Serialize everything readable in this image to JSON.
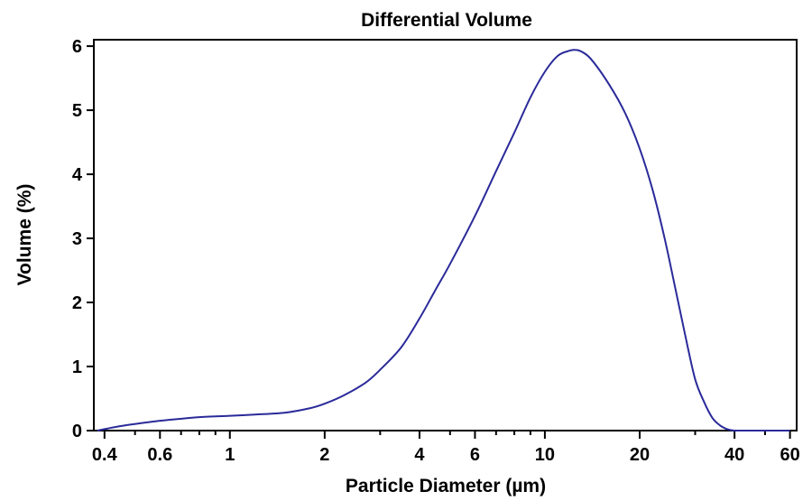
{
  "chart_data": {
    "type": "line",
    "title": "Differential Volume",
    "xlabel": "Particle Diameter (µm)",
    "ylabel": "Volume (%)",
    "x_scale": "log",
    "xlim": [
      0.37,
      63
    ],
    "ylim": [
      0,
      6.1
    ],
    "x_ticks": [
      0.4,
      0.6,
      1,
      2,
      4,
      6,
      10,
      20,
      40,
      60
    ],
    "x_tick_labels": [
      "0.4",
      "0.6",
      "1",
      "2",
      "4",
      "6",
      "10",
      "20",
      "40",
      "60"
    ],
    "y_ticks": [
      0,
      1,
      2,
      3,
      4,
      5,
      6
    ],
    "y_tick_labels": [
      "0",
      "1",
      "2",
      "3",
      "4",
      "5",
      "6"
    ],
    "grid": false,
    "legend": "none",
    "line_color": "#2a2a9a",
    "series": [
      {
        "x": [
          0.38,
          0.45,
          0.55,
          0.65,
          0.8,
          1.0,
          1.2,
          1.5,
          1.8,
          2.0,
          2.3,
          2.7,
          3.0,
          3.5,
          4.0,
          4.5,
          5.0,
          6.0,
          7.0,
          8.0,
          9.0,
          10.0,
          11.0,
          12.0,
          12.5,
          13.0,
          14.0,
          16.0,
          18.0,
          20.0,
          22.0,
          24.0,
          26.0,
          28.0,
          30.0,
          32.0,
          34.0,
          36.0,
          38.0,
          40.0,
          45.0,
          50.0,
          60.0
        ],
        "values": [
          0.0,
          0.07,
          0.13,
          0.17,
          0.21,
          0.23,
          0.25,
          0.28,
          0.35,
          0.42,
          0.55,
          0.75,
          0.95,
          1.3,
          1.75,
          2.2,
          2.6,
          3.35,
          4.05,
          4.65,
          5.2,
          5.6,
          5.85,
          5.93,
          5.94,
          5.92,
          5.8,
          5.4,
          4.95,
          4.4,
          3.75,
          3.0,
          2.2,
          1.45,
          0.8,
          0.45,
          0.2,
          0.08,
          0.02,
          0.0,
          0.0,
          0.0,
          0.0
        ]
      }
    ]
  }
}
